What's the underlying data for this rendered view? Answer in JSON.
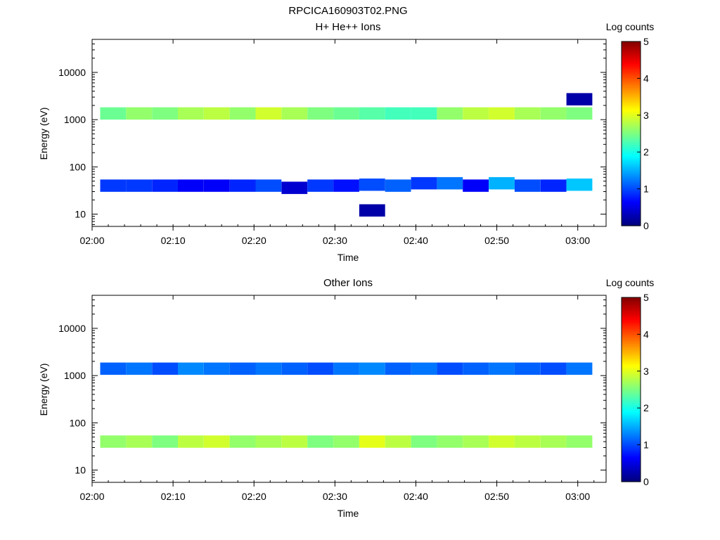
{
  "figure": {
    "title": "RPCICA160903T02.PNG"
  },
  "colors": {
    "colormap": [
      "#00007f",
      "#0000ff",
      "#007fff",
      "#00ffff",
      "#7fff7f",
      "#ffff00",
      "#ff7f00",
      "#ff0000",
      "#7f0000"
    ]
  },
  "chart_data": [
    {
      "type": "heatmap",
      "title": "H+ He++ Ions",
      "xlabel": "Time",
      "ylabel": "Energy (eV)",
      "x_ticks": [
        "02:00",
        "02:10",
        "02:20",
        "02:30",
        "02:40",
        "02:50",
        "03:00"
      ],
      "y_ticks": [
        "10",
        "100",
        "1000",
        "10000"
      ],
      "y_scale": "log",
      "ylim": [
        5.5,
        50000
      ],
      "xlim_minutes": [
        0,
        63.5
      ],
      "colorbar": {
        "label": "Log counts",
        "ticks": [
          "0",
          "1",
          "2",
          "3",
          "4",
          "5"
        ],
        "range": [
          0,
          5
        ]
      },
      "columns_minutes": [
        1,
        4.2,
        7.4,
        10.6,
        13.8,
        17,
        20.2,
        23.4,
        26.6,
        29.8,
        33,
        36.2,
        39.4,
        42.6,
        45.8,
        49,
        52.2,
        55.4,
        58.6,
        61.8
      ],
      "cells": [
        {
          "col": 0,
          "e": 40,
          "v": 0.9
        },
        {
          "col": 1,
          "e": 40,
          "v": 0.9
        },
        {
          "col": 2,
          "e": 40,
          "v": 0.8
        },
        {
          "col": 3,
          "e": 40,
          "v": 0.6
        },
        {
          "col": 4,
          "e": 40,
          "v": 0.6
        },
        {
          "col": 5,
          "e": 40,
          "v": 0.8
        },
        {
          "col": 6,
          "e": 40,
          "v": 1.0
        },
        {
          "col": 7,
          "e": 36,
          "v": 0.4
        },
        {
          "col": 8,
          "e": 40,
          "v": 0.9
        },
        {
          "col": 9,
          "e": 40,
          "v": 0.7
        },
        {
          "col": 10,
          "e": 42,
          "v": 1.0
        },
        {
          "col": 11,
          "e": 40,
          "v": 1.1
        },
        {
          "col": 12,
          "e": 45,
          "v": 0.9
        },
        {
          "col": 13,
          "e": 45,
          "v": 1.2
        },
        {
          "col": 14,
          "e": 40,
          "v": 0.6
        },
        {
          "col": 15,
          "e": 45,
          "v": 1.5
        },
        {
          "col": 16,
          "e": 40,
          "v": 1.0
        },
        {
          "col": 17,
          "e": 40,
          "v": 0.8
        },
        {
          "col": 18,
          "e": 42,
          "v": 1.6
        },
        {
          "col": 0,
          "e": 1350,
          "v": 2.4
        },
        {
          "col": 1,
          "e": 1350,
          "v": 2.6
        },
        {
          "col": 2,
          "e": 1350,
          "v": 2.5
        },
        {
          "col": 3,
          "e": 1350,
          "v": 2.7
        },
        {
          "col": 4,
          "e": 1350,
          "v": 2.8
        },
        {
          "col": 5,
          "e": 1350,
          "v": 2.6
        },
        {
          "col": 6,
          "e": 1350,
          "v": 2.9
        },
        {
          "col": 7,
          "e": 1350,
          "v": 2.7
        },
        {
          "col": 8,
          "e": 1350,
          "v": 2.5
        },
        {
          "col": 9,
          "e": 1350,
          "v": 2.4
        },
        {
          "col": 10,
          "e": 1350,
          "v": 2.3
        },
        {
          "col": 11,
          "e": 1350,
          "v": 2.2
        },
        {
          "col": 12,
          "e": 1350,
          "v": 2.2
        },
        {
          "col": 13,
          "e": 1350,
          "v": 2.6
        },
        {
          "col": 14,
          "e": 1350,
          "v": 2.8
        },
        {
          "col": 15,
          "e": 1350,
          "v": 2.9
        },
        {
          "col": 16,
          "e": 1350,
          "v": 2.7
        },
        {
          "col": 17,
          "e": 1350,
          "v": 2.6
        },
        {
          "col": 18,
          "e": 1350,
          "v": 2.5
        },
        {
          "col": 18,
          "e": 2700,
          "v": 0.2
        },
        {
          "col": 10,
          "e": 12,
          "v": 0.2
        }
      ]
    },
    {
      "type": "heatmap",
      "title": "Other Ions",
      "xlabel": "Time",
      "ylabel": "Energy (eV)",
      "x_ticks": [
        "02:00",
        "02:10",
        "02:20",
        "02:30",
        "02:40",
        "02:50",
        "03:00"
      ],
      "y_ticks": [
        "10",
        "100",
        "1000",
        "10000"
      ],
      "y_scale": "log",
      "ylim": [
        5.5,
        50000
      ],
      "xlim_minutes": [
        0,
        63.5
      ],
      "colorbar": {
        "label": "Log counts",
        "ticks": [
          "0",
          "1",
          "2",
          "3",
          "4",
          "5"
        ],
        "range": [
          0,
          5
        ]
      },
      "columns_minutes": [
        1,
        4.2,
        7.4,
        10.6,
        13.8,
        17,
        20.2,
        23.4,
        26.6,
        29.8,
        33,
        36.2,
        39.4,
        42.6,
        45.8,
        49,
        52.2,
        55.4,
        58.6,
        61.8
      ],
      "cells": [
        {
          "col": 0,
          "e": 40,
          "v": 2.6
        },
        {
          "col": 1,
          "e": 40,
          "v": 2.7
        },
        {
          "col": 2,
          "e": 40,
          "v": 2.5
        },
        {
          "col": 3,
          "e": 40,
          "v": 2.8
        },
        {
          "col": 4,
          "e": 40,
          "v": 2.9
        },
        {
          "col": 5,
          "e": 40,
          "v": 2.6
        },
        {
          "col": 6,
          "e": 40,
          "v": 2.7
        },
        {
          "col": 7,
          "e": 40,
          "v": 2.8
        },
        {
          "col": 8,
          "e": 40,
          "v": 2.5
        },
        {
          "col": 9,
          "e": 40,
          "v": 2.6
        },
        {
          "col": 10,
          "e": 40,
          "v": 3.0
        },
        {
          "col": 11,
          "e": 40,
          "v": 2.8
        },
        {
          "col": 12,
          "e": 40,
          "v": 2.5
        },
        {
          "col": 13,
          "e": 40,
          "v": 2.6
        },
        {
          "col": 14,
          "e": 40,
          "v": 2.7
        },
        {
          "col": 15,
          "e": 40,
          "v": 2.9
        },
        {
          "col": 16,
          "e": 40,
          "v": 2.8
        },
        {
          "col": 17,
          "e": 40,
          "v": 2.7
        },
        {
          "col": 18,
          "e": 40,
          "v": 2.6
        },
        {
          "col": 0,
          "e": 1400,
          "v": 1.1
        },
        {
          "col": 1,
          "e": 1400,
          "v": 1.2
        },
        {
          "col": 2,
          "e": 1400,
          "v": 1.0
        },
        {
          "col": 3,
          "e": 1400,
          "v": 1.3
        },
        {
          "col": 4,
          "e": 1400,
          "v": 1.2
        },
        {
          "col": 5,
          "e": 1400,
          "v": 1.1
        },
        {
          "col": 6,
          "e": 1400,
          "v": 1.2
        },
        {
          "col": 7,
          "e": 1400,
          "v": 1.1
        },
        {
          "col": 8,
          "e": 1400,
          "v": 1.0
        },
        {
          "col": 9,
          "e": 1400,
          "v": 1.2
        },
        {
          "col": 10,
          "e": 1400,
          "v": 1.3
        },
        {
          "col": 11,
          "e": 1400,
          "v": 1.1
        },
        {
          "col": 12,
          "e": 1400,
          "v": 1.2
        },
        {
          "col": 13,
          "e": 1400,
          "v": 1.0
        },
        {
          "col": 14,
          "e": 1400,
          "v": 1.1
        },
        {
          "col": 15,
          "e": 1400,
          "v": 1.2
        },
        {
          "col": 16,
          "e": 1400,
          "v": 1.1
        },
        {
          "col": 17,
          "e": 1400,
          "v": 1.0
        },
        {
          "col": 18,
          "e": 1400,
          "v": 1.2
        }
      ]
    }
  ]
}
